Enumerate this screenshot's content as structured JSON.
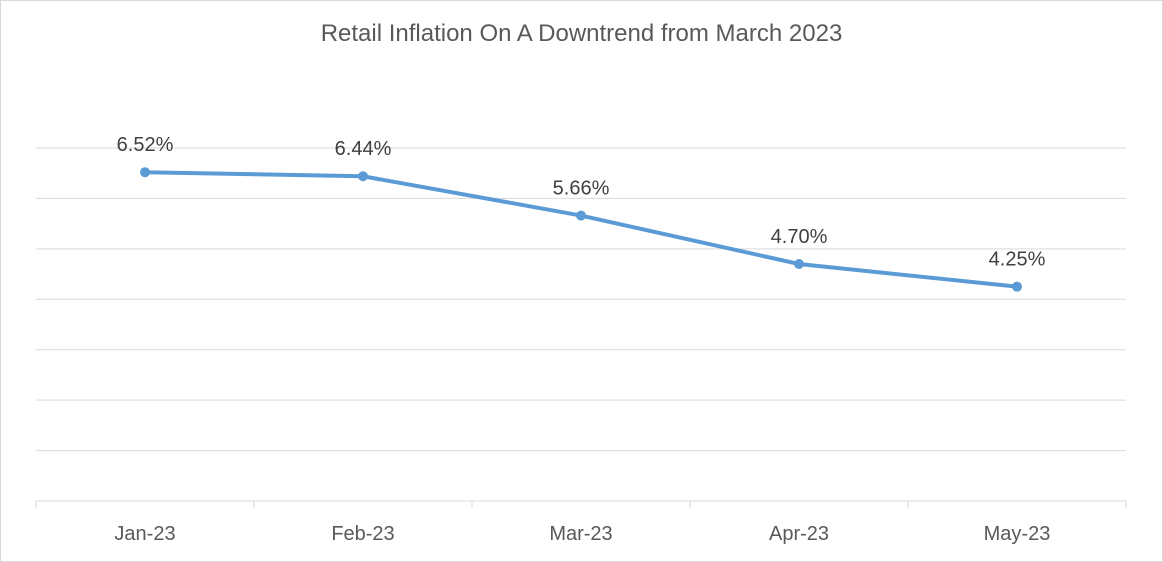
{
  "chart_data": {
    "type": "line",
    "title": "Retail Inflation On A Downtrend from March 2023",
    "xlabel": "",
    "ylabel": "",
    "categories": [
      "Jan-23",
      "Feb-23",
      "Mar-23",
      "Apr-23",
      "May-23"
    ],
    "series": [
      {
        "values": [
          6.52,
          6.44,
          5.66,
          4.7,
          4.25
        ],
        "data_labels": [
          "6.52%",
          "6.44%",
          "5.66%",
          "4.70%",
          "4.25%"
        ],
        "color": "#5b9bd5"
      }
    ],
    "ylim": [
      0,
      7
    ],
    "y_major_step": 1,
    "grid": true,
    "legend": "none"
  }
}
